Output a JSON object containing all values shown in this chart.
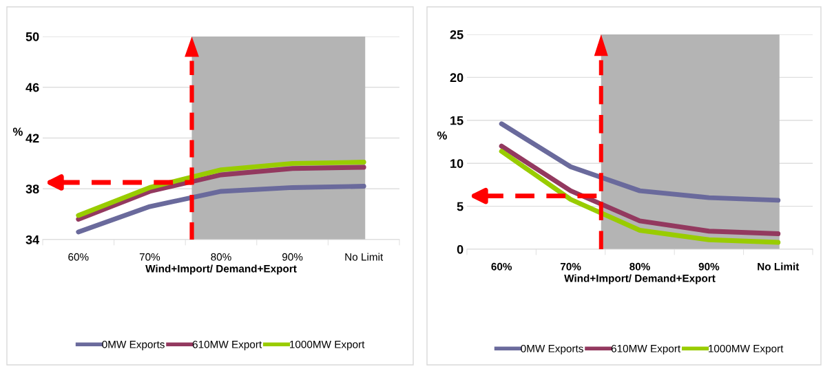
{
  "chart_data": [
    {
      "type": "line",
      "xlabel": "Wind+Import/ Demand+Export",
      "ylabel": "%",
      "categories": [
        "60%",
        "70%",
        "80%",
        "90%",
        "No Limit"
      ],
      "series": [
        {
          "name": "0MW Exports",
          "color": "#6a6a9c",
          "values": [
            34.6,
            36.6,
            37.8,
            38.1,
            38.2
          ]
        },
        {
          "name": "610MW Export",
          "color": "#93395f",
          "values": [
            35.6,
            37.8,
            39.1,
            39.6,
            39.7
          ]
        },
        {
          "name": "1000MW Export",
          "color": "#99cc00",
          "values": [
            35.9,
            38.1,
            39.5,
            40.0,
            40.1
          ]
        }
      ],
      "ylim": [
        34,
        50
      ],
      "yticks": [
        34,
        38,
        42,
        46,
        50
      ],
      "grid": "y",
      "legend": "bottom",
      "marker": "none",
      "line_style": "solid",
      "ref_lines": [
        {
          "axis": "y",
          "value": 38.5,
          "color": "#ff0000",
          "line_style": "dashed"
        }
      ]
    },
    {
      "type": "line",
      "xlabel": "Wind+Import/ Demand+Export",
      "ylabel": "%",
      "categories": [
        "60%",
        "70%",
        "80%",
        "90%",
        "No Limit"
      ],
      "series": [
        {
          "name": "0MW Exports",
          "color": "#6a6a9c",
          "values": [
            14.6,
            9.6,
            6.8,
            6.0,
            5.7
          ]
        },
        {
          "name": "610MW Export",
          "color": "#93395f",
          "values": [
            12.0,
            6.8,
            3.3,
            2.1,
            1.8
          ]
        },
        {
          "name": "1000MW Export",
          "color": "#99cc00",
          "values": [
            11.4,
            5.8,
            2.2,
            1.1,
            0.8
          ]
        }
      ],
      "ylim": [
        0,
        25
      ],
      "yticks": [
        0,
        5,
        10,
        15,
        20,
        25
      ],
      "grid": "y",
      "legend": "bottom",
      "marker": "none",
      "line_style": "solid",
      "ref_lines": [
        {
          "axis": "y",
          "value": 6.2,
          "color": "#ff0000",
          "line_style": "dashed"
        }
      ]
    }
  ]
}
